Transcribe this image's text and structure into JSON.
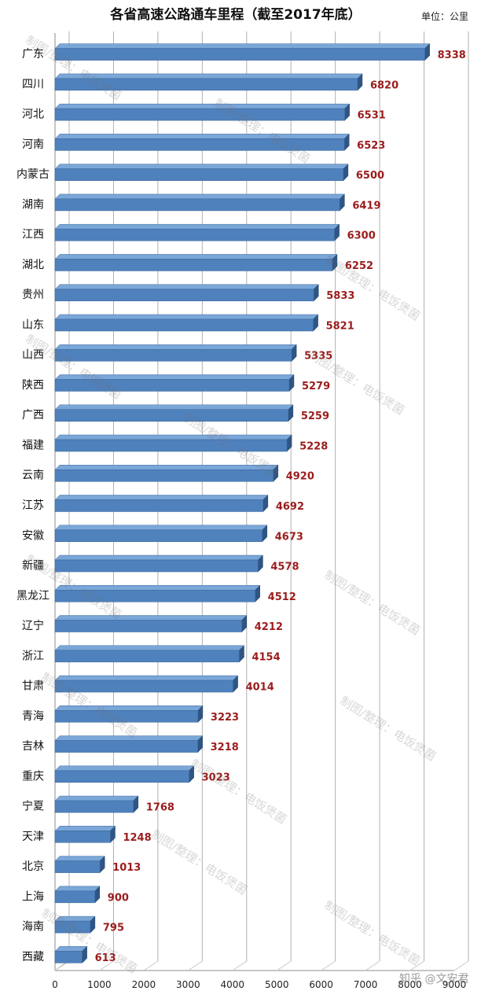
{
  "chart_data": {
    "type": "bar",
    "orientation": "horizontal",
    "title": "各省高速公路通车里程（截至2017年底）",
    "unit_label": "单位：公里",
    "categories": [
      "广东",
      "四川",
      "河北",
      "河南",
      "内蒙古",
      "湖南",
      "江西",
      "湖北",
      "贵州",
      "山东",
      "山西",
      "陕西",
      "广西",
      "福建",
      "云南",
      "江苏",
      "安徽",
      "新疆",
      "黑龙江",
      "辽宁",
      "浙江",
      "甘肃",
      "青海",
      "吉林",
      "重庆",
      "宁夏",
      "天津",
      "北京",
      "上海",
      "海南",
      "西藏"
    ],
    "values": [
      8338,
      6820,
      6531,
      6523,
      6500,
      6419,
      6300,
      6252,
      5833,
      5821,
      5335,
      5279,
      5259,
      5228,
      4920,
      4692,
      4673,
      4578,
      4512,
      4212,
      4154,
      4014,
      3223,
      3218,
      3023,
      1768,
      1248,
      1013,
      900,
      795,
      613
    ],
    "xlim": [
      0,
      9000
    ],
    "xticks": [
      0,
      1000,
      2000,
      3000,
      4000,
      5000,
      6000,
      7000,
      8000,
      9000
    ],
    "grid": "vertical",
    "legend": "none",
    "bar_color": "#4f81bd",
    "bar_top_color": "#7aa6d8",
    "bar_side_color": "#2f5585",
    "label_color": "#9b1c1c"
  },
  "watermark_text": "制图/整理：电饭煲菌",
  "credit_text": "知乎 @文安君"
}
